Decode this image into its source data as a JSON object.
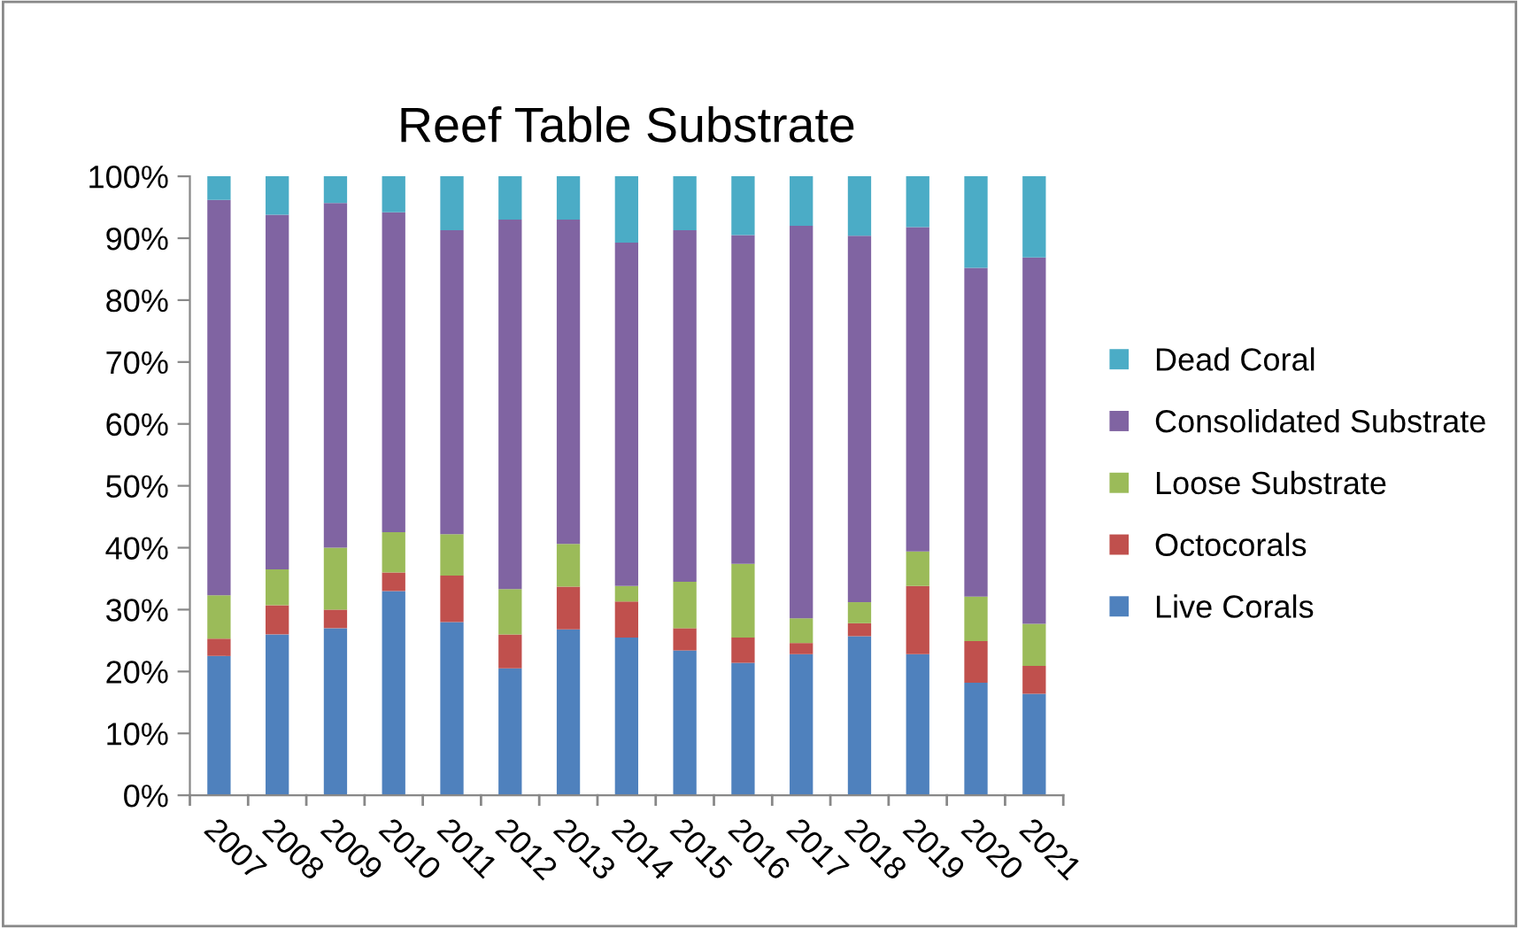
{
  "chart_data": {
    "type": "bar",
    "title": "Reef Table Substrate",
    "stacked": true,
    "legend": "right",
    "grid": false,
    "categories": [
      "2007",
      "2008",
      "2009",
      "2010",
      "2011",
      "2012",
      "2013",
      "2014",
      "2015",
      "2016",
      "2017",
      "2018",
      "2019",
      "2020",
      "2021"
    ],
    "ylim": [
      0,
      100
    ],
    "yticks": [
      {
        "value": 0,
        "label": "0%"
      },
      {
        "value": 10,
        "label": "10%"
      },
      {
        "value": 20,
        "label": "20%"
      },
      {
        "value": 30,
        "label": "30%"
      },
      {
        "value": 40,
        "label": "40%"
      },
      {
        "value": 50,
        "label": "50%"
      },
      {
        "value": 60,
        "label": "60%"
      },
      {
        "value": 70,
        "label": "70%"
      },
      {
        "value": 80,
        "label": "80%"
      },
      {
        "value": 90,
        "label": "90%"
      },
      {
        "value": 100,
        "label": "100%"
      }
    ],
    "series": [
      {
        "name": "Live Corals",
        "color": "#4f81bd",
        "values": [
          22.5,
          26,
          27,
          33,
          28,
          20.5,
          26.8,
          25.5,
          23.4,
          21.4,
          22.8,
          25.7,
          22.8,
          18.2,
          16.4
        ]
      },
      {
        "name": "Octocorals",
        "color": "#c0504d",
        "values": [
          2.8,
          4.7,
          3,
          3,
          7.5,
          5.5,
          6.9,
          5.8,
          3.6,
          4.1,
          1.8,
          2.1,
          11,
          6.7,
          4.5
        ]
      },
      {
        "name": "Loose Substrate",
        "color": "#9bbb59",
        "values": [
          7,
          5.8,
          10,
          6.5,
          6.7,
          7.3,
          6.9,
          2.5,
          7.5,
          11.9,
          4,
          3.4,
          5.6,
          7.2,
          6.8
        ]
      },
      {
        "name": "Consolidated Substrate",
        "color": "#8064a2",
        "values": [
          63.9,
          57.3,
          55.7,
          51.7,
          49.1,
          59.7,
          52.4,
          55.5,
          56.8,
          53.1,
          63.4,
          59.2,
          52.4,
          53.1,
          59.2
        ]
      },
      {
        "name": "Dead Coral",
        "color": "#4bacc6",
        "values": [
          3.8,
          6.2,
          4.3,
          5.8,
          8.7,
          7,
          7,
          10.7,
          8.7,
          9.5,
          8,
          9.6,
          8.2,
          14.8,
          13.1
        ]
      }
    ]
  }
}
